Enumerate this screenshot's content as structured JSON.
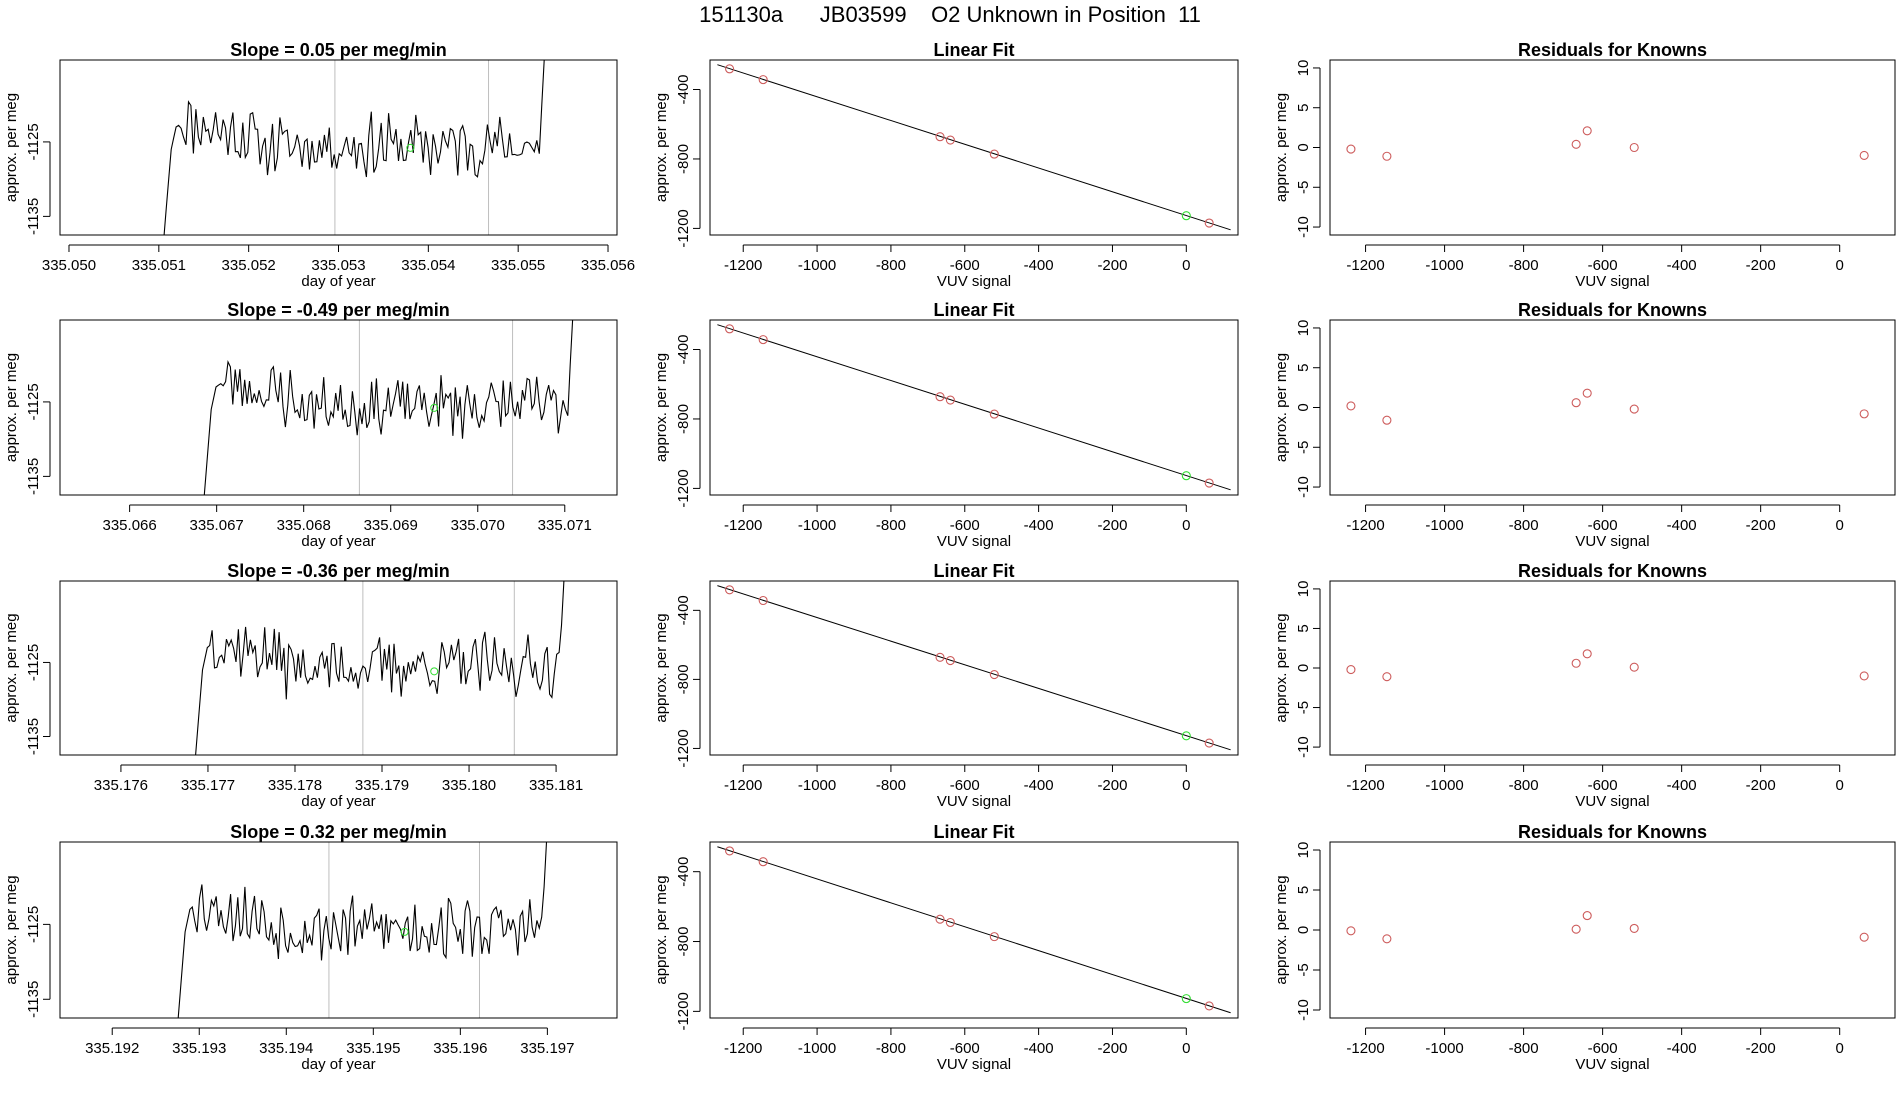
{
  "page": {
    "title": "151130a      JB03599    O2 Unknown in Position  11"
  },
  "colors": {
    "line": "#000000",
    "frame": "#000000",
    "vline": "#bebebe",
    "known_point": "#cd5c5c",
    "unknown_point": "#33dd33"
  },
  "chart_data": [
    {
      "type": "line",
      "title": "Slope =  0.05  per meg/min",
      "xlabel": "day of year",
      "ylabel": "approx. per meg",
      "xlim": [
        335.0499,
        335.0561
      ],
      "ylim": [
        -1137.5,
        -1114
      ],
      "xticks": [
        335.05,
        335.051,
        335.052,
        335.053,
        335.054,
        335.055,
        335.056
      ],
      "xtick_labels": [
        "335.050",
        "335.051",
        "335.052",
        "335.053",
        "335.054",
        "335.055",
        "335.056"
      ],
      "yticks": [
        -1125,
        -1135
      ],
      "ytick_labels": [
        "-1125",
        "-1135"
      ],
      "x_start": 335.051,
      "x_end": 335.0554,
      "vlines": [
        335.05296,
        335.05467
      ],
      "unknown_point": {
        "x": 335.0538,
        "y": -1125.8
      },
      "trace_seed": 11
    },
    {
      "type": "scatter",
      "title": "Linear Fit",
      "xlabel": "VUV signal",
      "ylabel": "approx. per meg",
      "xlim": [
        -1290,
        140
      ],
      "ylim": [
        -1238,
        -230
      ],
      "xticks": [
        -1200,
        -1000,
        -800,
        -600,
        -400,
        -200,
        0
      ],
      "xtick_labels": [
        "-1200",
        "-1000",
        "-800",
        "-600",
        "-400",
        "-200",
        "0"
      ],
      "yticks": [
        -400,
        -800,
        -1200
      ],
      "ytick_labels": [
        "-400",
        "-800",
        "-1200"
      ],
      "fit_line": [
        [
          -1270,
          -257
        ],
        [
          120,
          -1208
        ]
      ],
      "known_x": [
        -1237,
        -1146,
        -667,
        -639,
        -520,
        62
      ],
      "known_y": [
        -281,
        -343,
        -672,
        -691,
        -772,
        -1169
      ],
      "unknown_point": {
        "x": 0,
        "y": -1127
      }
    },
    {
      "type": "scatter",
      "title": "Residuals for Knowns",
      "xlabel": "VUV signal",
      "ylabel": "approx. per meg",
      "xlim": [
        -1290,
        140
      ],
      "ylim": [
        -11,
        11
      ],
      "xticks": [
        -1200,
        -1000,
        -800,
        -600,
        -400,
        -200,
        0
      ],
      "xtick_labels": [
        "-1200",
        "-1000",
        "-800",
        "-600",
        "-400",
        "-200",
        "0"
      ],
      "yticks": [
        10,
        5,
        0,
        -5,
        -10
      ],
      "ytick_labels": [
        "10",
        "5",
        "0",
        "-5",
        "-10"
      ],
      "known_x": [
        -1237,
        -1146,
        -667,
        -639,
        -520,
        62
      ],
      "known_y": [
        -0.2,
        -1.1,
        0.4,
        2.1,
        0.0,
        -1.0
      ]
    },
    {
      "type": "line",
      "title": "Slope =  -0.49  per meg/min",
      "xlabel": "day of year",
      "ylabel": "approx. per meg",
      "xlim": [
        335.0652,
        335.0716
      ],
      "ylim": [
        -1137.5,
        -1114
      ],
      "xticks": [
        335.066,
        335.067,
        335.068,
        335.069,
        335.07,
        335.071
      ],
      "xtick_labels": [
        "335.066",
        "335.067",
        "335.068",
        "335.069",
        "335.070",
        "335.071"
      ],
      "yticks": [
        -1125,
        -1135
      ],
      "ytick_labels": [
        "-1125",
        "-1135"
      ],
      "x_start": 335.0668,
      "x_end": 335.0712,
      "vlines": [
        335.06864,
        335.0704
      ],
      "unknown_point": {
        "x": 335.0695,
        "y": -1125.8
      },
      "trace_seed": 23
    },
    {
      "type": "scatter",
      "title": "Linear Fit",
      "xlabel": "VUV signal",
      "ylabel": "approx. per meg",
      "xlim": [
        -1290,
        140
      ],
      "ylim": [
        -1238,
        -230
      ],
      "xticks": [
        -1200,
        -1000,
        -800,
        -600,
        -400,
        -200,
        0
      ],
      "xtick_labels": [
        "-1200",
        "-1000",
        "-800",
        "-600",
        "-400",
        "-200",
        "0"
      ],
      "yticks": [
        -400,
        -800,
        -1200
      ],
      "ytick_labels": [
        "-400",
        "-800",
        "-1200"
      ],
      "fit_line": [
        [
          -1270,
          -257
        ],
        [
          120,
          -1208
        ]
      ],
      "known_x": [
        -1237,
        -1146,
        -667,
        -639,
        -520,
        62
      ],
      "known_y": [
        -281,
        -343,
        -672,
        -691,
        -772,
        -1169
      ],
      "unknown_point": {
        "x": 0,
        "y": -1127
      }
    },
    {
      "type": "scatter",
      "title": "Residuals for Knowns",
      "xlabel": "VUV signal",
      "ylabel": "approx. per meg",
      "xlim": [
        -1290,
        140
      ],
      "ylim": [
        -11,
        11
      ],
      "xticks": [
        -1200,
        -1000,
        -800,
        -600,
        -400,
        -200,
        0
      ],
      "xtick_labels": [
        "-1200",
        "-1000",
        "-800",
        "-600",
        "-400",
        "-200",
        "0"
      ],
      "yticks": [
        10,
        5,
        0,
        -5,
        -10
      ],
      "ytick_labels": [
        "10",
        "5",
        "0",
        "-5",
        "-10"
      ],
      "known_x": [
        -1237,
        -1146,
        -667,
        -639,
        -520,
        62
      ],
      "known_y": [
        0.2,
        -1.6,
        0.6,
        1.8,
        -0.2,
        -0.8
      ]
    },
    {
      "type": "line",
      "title": "Slope =  -0.36  per meg/min",
      "xlabel": "day of year",
      "ylabel": "approx. per meg",
      "xlim": [
        335.1753,
        335.1817
      ],
      "ylim": [
        -1137.5,
        -1114
      ],
      "xticks": [
        335.176,
        335.177,
        335.178,
        335.179,
        335.18,
        335.181
      ],
      "xtick_labels": [
        "335.176",
        "335.177",
        "335.178",
        "335.179",
        "335.180",
        "335.181"
      ],
      "yticks": [
        -1125,
        -1135
      ],
      "ytick_labels": [
        "-1125",
        "-1135"
      ],
      "x_start": 335.1768,
      "x_end": 335.1812,
      "vlines": [
        335.17878,
        335.18052
      ],
      "unknown_point": {
        "x": 335.1796,
        "y": -1126.2
      },
      "trace_seed": 37
    },
    {
      "type": "scatter",
      "title": "Linear Fit",
      "xlabel": "VUV signal",
      "ylabel": "approx. per meg",
      "xlim": [
        -1290,
        140
      ],
      "ylim": [
        -1238,
        -230
      ],
      "xticks": [
        -1200,
        -1000,
        -800,
        -600,
        -400,
        -200,
        0
      ],
      "xtick_labels": [
        "-1200",
        "-1000",
        "-800",
        "-600",
        "-400",
        "-200",
        "0"
      ],
      "yticks": [
        -400,
        -800,
        -1200
      ],
      "ytick_labels": [
        "-400",
        "-800",
        "-1200"
      ],
      "fit_line": [
        [
          -1270,
          -257
        ],
        [
          120,
          -1208
        ]
      ],
      "known_x": [
        -1237,
        -1146,
        -667,
        -639,
        -520,
        62
      ],
      "known_y": [
        -281,
        -343,
        -672,
        -691,
        -772,
        -1169
      ],
      "unknown_point": {
        "x": 0,
        "y": -1127
      }
    },
    {
      "type": "scatter",
      "title": "Residuals for Knowns",
      "xlabel": "VUV signal",
      "ylabel": "approx. per meg",
      "xlim": [
        -1290,
        140
      ],
      "ylim": [
        -11,
        11
      ],
      "xticks": [
        -1200,
        -1000,
        -800,
        -600,
        -400,
        -200,
        0
      ],
      "xtick_labels": [
        "-1200",
        "-1000",
        "-800",
        "-600",
        "-400",
        "-200",
        "0"
      ],
      "yticks": [
        10,
        5,
        0,
        -5,
        -10
      ],
      "ytick_labels": [
        "10",
        "5",
        "0",
        "-5",
        "-10"
      ],
      "known_x": [
        -1237,
        -1146,
        -667,
        -639,
        -520,
        62
      ],
      "known_y": [
        -0.2,
        -1.1,
        0.6,
        1.8,
        0.1,
        -1.0
      ]
    },
    {
      "type": "line",
      "title": "Slope =  0.32  per meg/min",
      "xlabel": "day of year",
      "ylabel": "approx. per meg",
      "xlim": [
        335.1914,
        335.1978
      ],
      "ylim": [
        -1137.5,
        -1114
      ],
      "xticks": [
        335.192,
        335.193,
        335.194,
        335.195,
        335.196,
        335.197
      ],
      "xtick_labels": [
        "335.192",
        "335.193",
        "335.194",
        "335.195",
        "335.196",
        "335.197"
      ],
      "yticks": [
        -1125,
        -1135
      ],
      "ytick_labels": [
        "-1125",
        "-1135"
      ],
      "x_start": 335.1927,
      "x_end": 335.1971,
      "vlines": [
        335.19449,
        335.19622
      ],
      "unknown_point": {
        "x": 335.19536,
        "y": -1126.0
      },
      "trace_seed": 53
    },
    {
      "type": "scatter",
      "title": "Linear Fit",
      "xlabel": "VUV signal",
      "ylabel": "approx. per meg",
      "xlim": [
        -1290,
        140
      ],
      "ylim": [
        -1238,
        -230
      ],
      "xticks": [
        -1200,
        -1000,
        -800,
        -600,
        -400,
        -200,
        0
      ],
      "xtick_labels": [
        "-1200",
        "-1000",
        "-800",
        "-600",
        "-400",
        "-200",
        "0"
      ],
      "yticks": [
        -400,
        -800,
        -1200
      ],
      "ytick_labels": [
        "-400",
        "-800",
        "-1200"
      ],
      "fit_line": [
        [
          -1270,
          -257
        ],
        [
          120,
          -1208
        ]
      ],
      "known_x": [
        -1237,
        -1146,
        -667,
        -639,
        -520,
        62
      ],
      "known_y": [
        -281,
        -343,
        -672,
        -691,
        -772,
        -1169
      ],
      "unknown_point": {
        "x": 0,
        "y": -1127
      }
    },
    {
      "type": "scatter",
      "title": "Residuals for Knowns",
      "xlabel": "VUV signal",
      "ylabel": "approx. per meg",
      "xlim": [
        -1290,
        140
      ],
      "ylim": [
        -11,
        11
      ],
      "xticks": [
        -1200,
        -1000,
        -800,
        -600,
        -400,
        -200,
        0
      ],
      "xtick_labels": [
        "-1200",
        "-1000",
        "-800",
        "-600",
        "-400",
        "-200",
        "0"
      ],
      "yticks": [
        10,
        5,
        0,
        -5,
        -10
      ],
      "ytick_labels": [
        "10",
        "5",
        "0",
        "-5",
        "-10"
      ],
      "known_x": [
        -1237,
        -1146,
        -667,
        -639,
        -520,
        62
      ],
      "known_y": [
        -0.1,
        -1.1,
        0.1,
        1.8,
        0.2,
        -0.9
      ]
    }
  ]
}
